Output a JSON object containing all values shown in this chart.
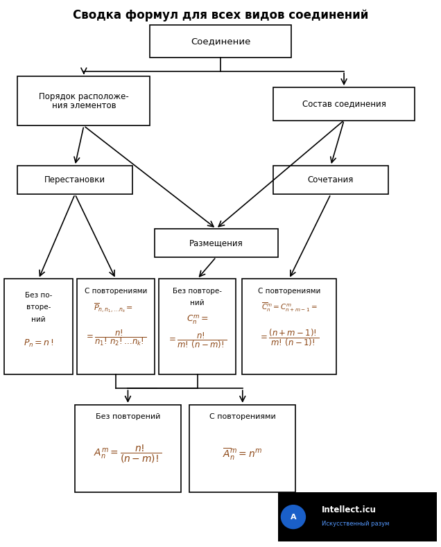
{
  "title": "Сводка формул для всех видов соединений",
  "bg_color": "#ffffff",
  "black": "#000000",
  "brown": "#8B4513",
  "boxes": {
    "soed": [
      0.34,
      0.895,
      0.32,
      0.06
    ],
    "por": [
      0.04,
      0.77,
      0.3,
      0.09
    ],
    "sost": [
      0.62,
      0.78,
      0.32,
      0.06
    ],
    "per": [
      0.04,
      0.645,
      0.26,
      0.052
    ],
    "soch": [
      0.62,
      0.645,
      0.26,
      0.052
    ],
    "razm": [
      0.35,
      0.53,
      0.28,
      0.052
    ],
    "b1": [
      0.01,
      0.315,
      0.155,
      0.175
    ],
    "b2": [
      0.175,
      0.315,
      0.175,
      0.175
    ],
    "b3": [
      0.36,
      0.315,
      0.175,
      0.175
    ],
    "b4": [
      0.548,
      0.315,
      0.215,
      0.175
    ],
    "b5": [
      0.17,
      0.1,
      0.24,
      0.16
    ],
    "b6": [
      0.43,
      0.1,
      0.24,
      0.16
    ]
  }
}
